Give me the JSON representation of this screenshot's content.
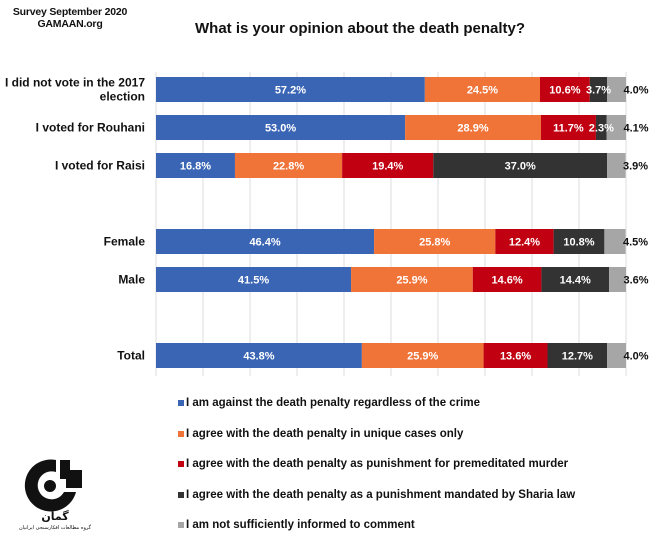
{
  "header": {
    "source_line1": "Survey September 2020",
    "source_line2": "GAMAAN.org"
  },
  "logo": {
    "icon": "gamaan-logo-icon",
    "persian_name": "گمان",
    "persian_tagline": "گروه مطالعات افکارسنجی ایرانیان"
  },
  "chart_data": {
    "type": "bar",
    "orientation": "horizontal",
    "stacked": true,
    "title": "What is your opinion about the death penalty?",
    "xlabel": "",
    "ylabel": "",
    "xlim": [
      0,
      100
    ],
    "unit": "%",
    "grid": true,
    "legend_position": "bottom",
    "categories": [
      "I did not vote in the 2017 election",
      "I voted for Rouhani",
      "I voted for Raisi",
      "Female",
      "Male",
      "Total"
    ],
    "series": [
      {
        "name": "I am against the death penalty regardless of the crime",
        "color": "#3a65b5",
        "label_color": "#ffffff",
        "values": [
          57.2,
          53.0,
          16.8,
          46.4,
          41.5,
          43.8
        ]
      },
      {
        "name": "I agree with the death penalty in unique cases only",
        "color": "#f07338",
        "label_color": "#ffffff",
        "values": [
          24.5,
          28.9,
          22.8,
          25.8,
          25.9,
          25.9
        ]
      },
      {
        "name": "I agree with the death penalty as punishment for premeditated murder",
        "color": "#c10011",
        "label_color": "#ffffff",
        "values": [
          10.6,
          11.7,
          19.4,
          12.4,
          14.6,
          13.6
        ]
      },
      {
        "name": "I agree with the death penalty as a punishment mandated by Sharia law",
        "color": "#333333",
        "label_color": "#ffffff",
        "values": [
          3.7,
          2.3,
          37.0,
          10.8,
          14.4,
          12.7
        ]
      },
      {
        "name": "I am not sufficiently informed to comment",
        "color": "#a7a6a6",
        "label_color": "#111111",
        "values": [
          4.0,
          4.1,
          3.9,
          4.5,
          3.6,
          4.0
        ]
      }
    ],
    "data_labels": [
      [
        "57.2%",
        "24.5%",
        "10.6%",
        "3.7%",
        "4.0%"
      ],
      [
        "53.0%",
        "28.9%",
        "11.7%",
        "2.3%",
        "4.1%"
      ],
      [
        "16.8%",
        "22.8%",
        "19.4%",
        "37.0%",
        "3.9%"
      ],
      [
        "46.4%",
        "25.8%",
        "12.4%",
        "10.8%",
        "4.5%"
      ],
      [
        "41.5%",
        "25.9%",
        "14.6%",
        "14.4%",
        "3.6%"
      ],
      [
        "43.8%",
        "25.9%",
        "13.6%",
        "12.7%",
        "4.0%"
      ]
    ],
    "category_label_lines": [
      [
        "I did not vote in the 2017",
        "election"
      ],
      [
        "I voted for Rouhani"
      ],
      [
        "I voted for Raisi"
      ],
      [
        "Female"
      ],
      [
        "Male"
      ],
      [
        "Total"
      ]
    ]
  }
}
